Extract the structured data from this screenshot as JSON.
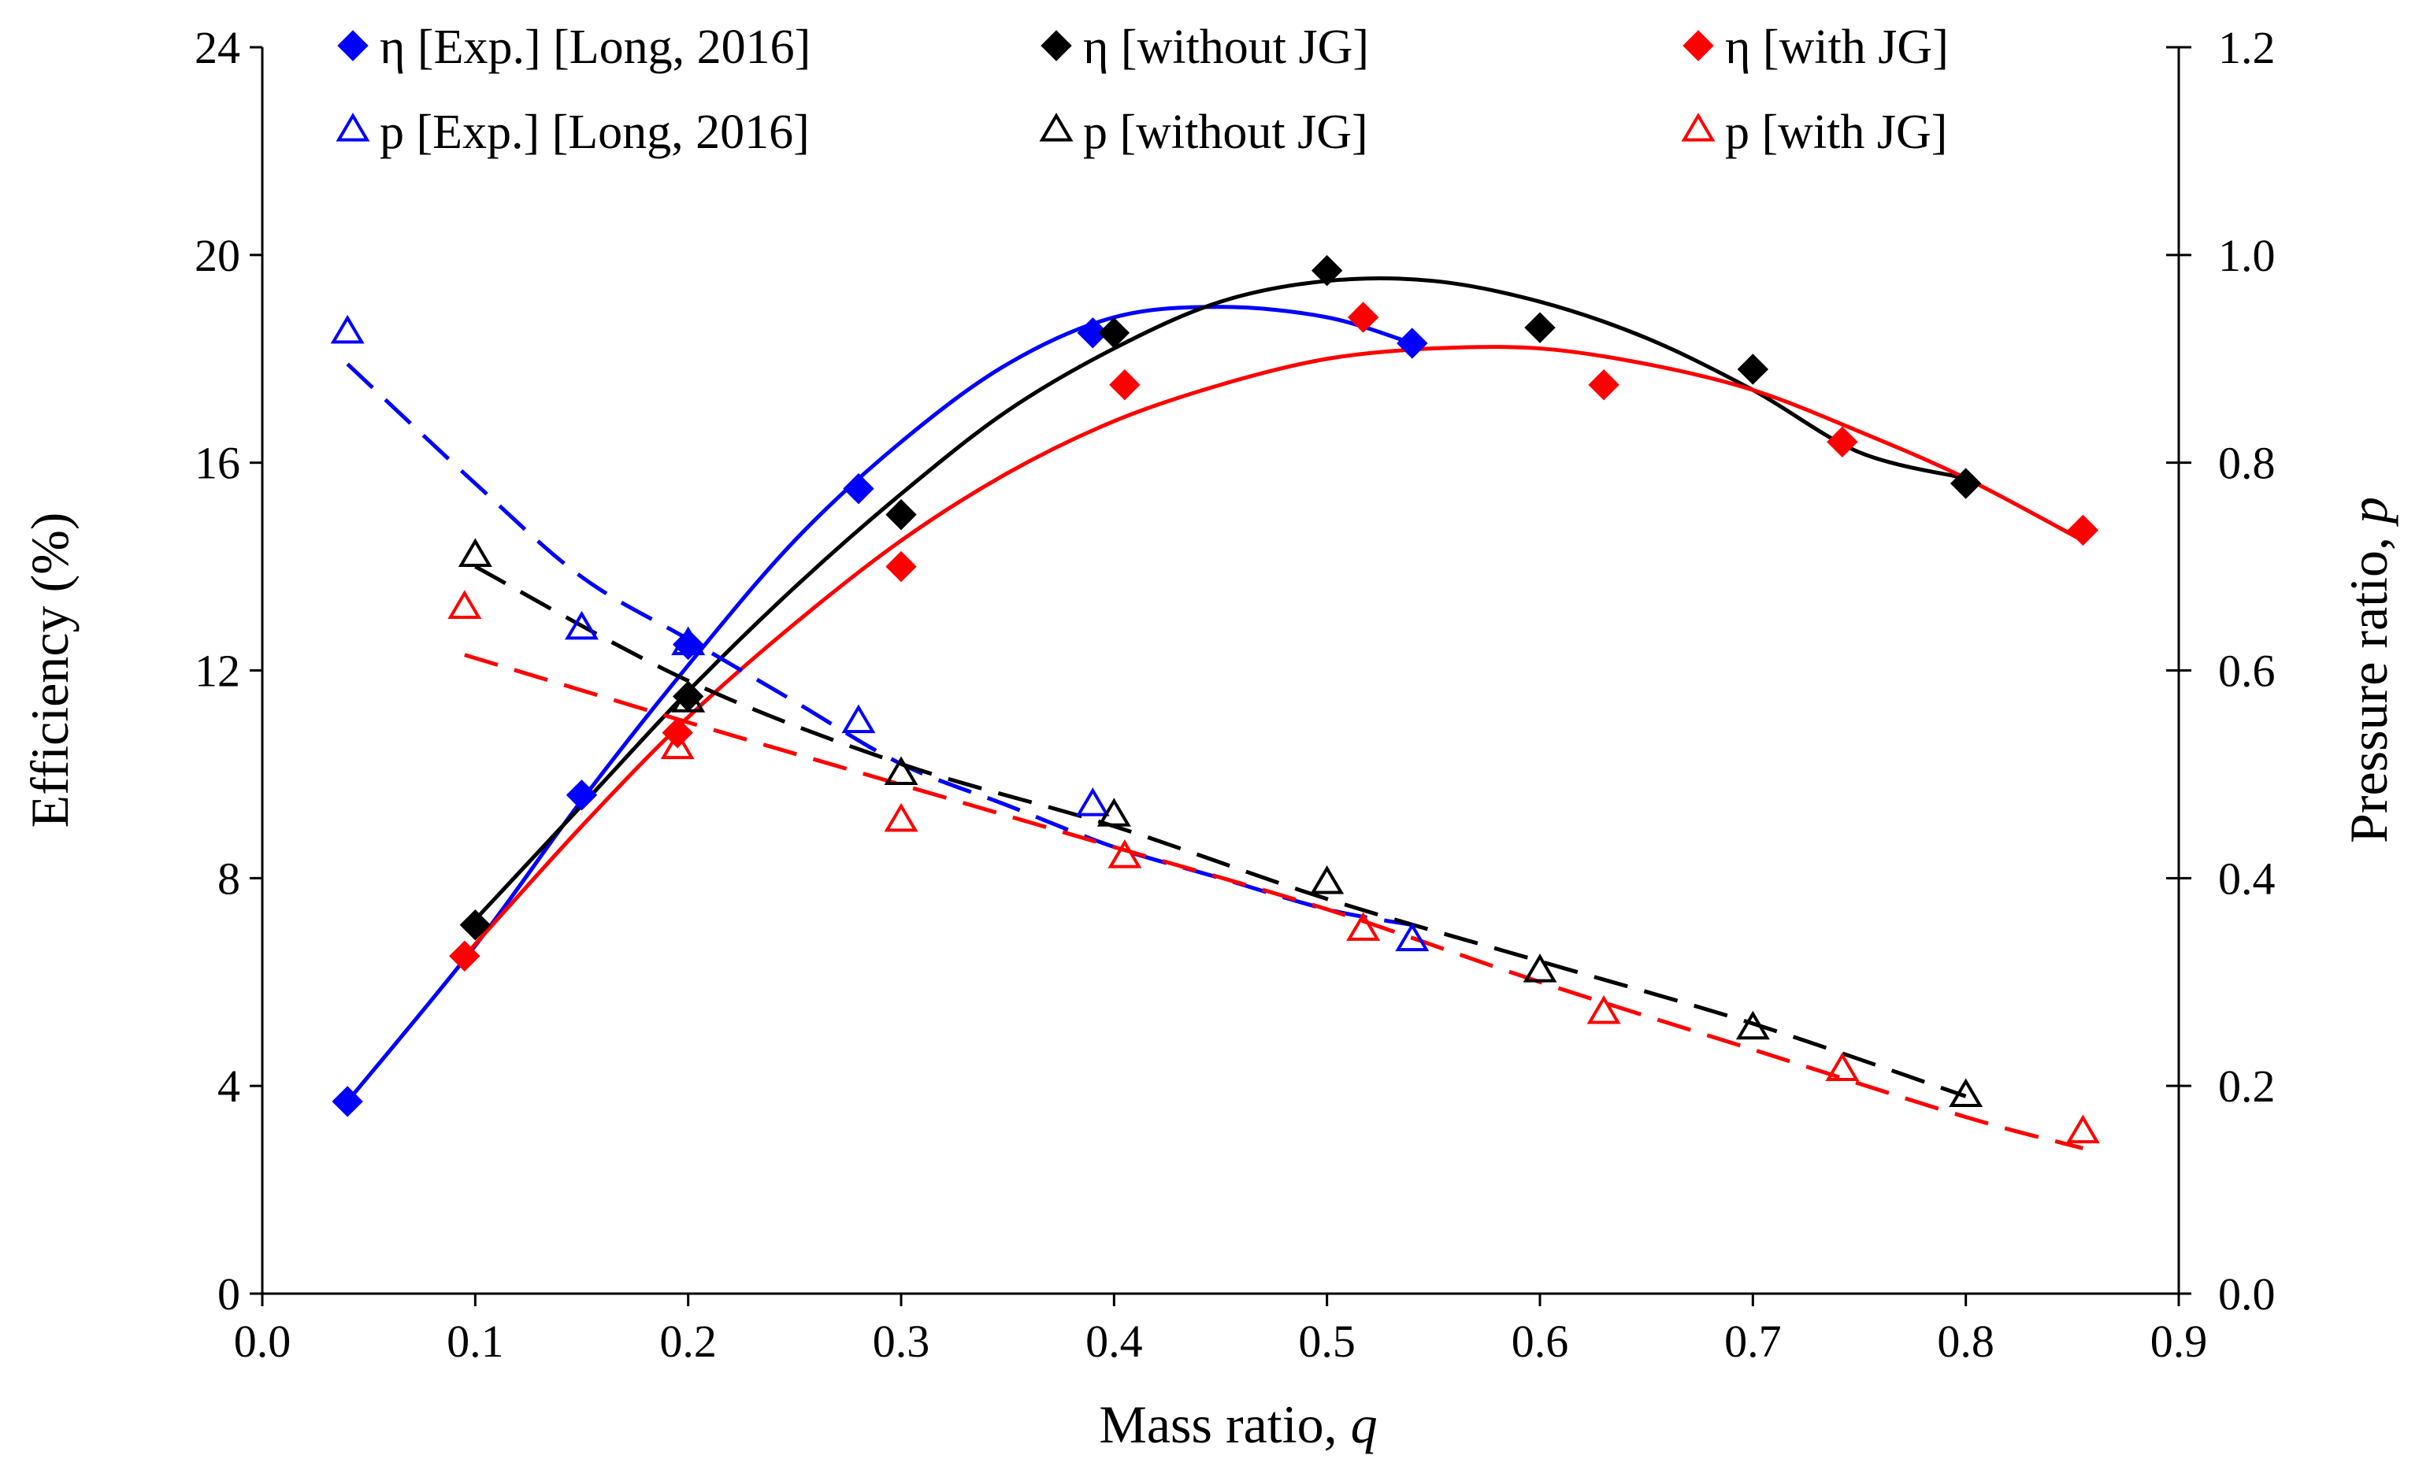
{
  "chart_data": {
    "type": "scatter",
    "title": "",
    "xlabel": "Mass ratio,",
    "xlabel_var": "q",
    "ylabel": "Efficiency (%)",
    "y2label": "Pressure ratio,",
    "y2label_var": "p",
    "xlim": [
      0.0,
      0.9
    ],
    "ylim": [
      0,
      24
    ],
    "y2lim": [
      0.0,
      1.2
    ],
    "x_ticks": [
      "0.0",
      "0.1",
      "0.2",
      "0.3",
      "0.4",
      "0.5",
      "0.6",
      "0.7",
      "0.8",
      "0.9"
    ],
    "y_ticks": [
      "0",
      "4",
      "8",
      "12",
      "16",
      "20",
      "24"
    ],
    "y2_ticks": [
      "0.0",
      "0.2",
      "0.4",
      "0.6",
      "0.8",
      "1.0",
      "1.2"
    ],
    "grid": false,
    "legend_position": "top",
    "series": [
      {
        "name": "η [Exp.] [Long, 2016]",
        "axis": "left",
        "marker": "diamond",
        "color": "#0000ff",
        "x": [
          0.04,
          0.15,
          0.2,
          0.28,
          0.39,
          0.54
        ],
        "y": [
          3.7,
          9.6,
          12.5,
          15.5,
          18.5,
          18.3
        ],
        "fit": {
          "style": "solid",
          "x": [
            0.04,
            0.1,
            0.15,
            0.2,
            0.25,
            0.3,
            0.35,
            0.4,
            0.45,
            0.5,
            0.54
          ],
          "y": [
            3.7,
            6.7,
            9.5,
            12.1,
            14.5,
            16.4,
            17.9,
            18.8,
            19.0,
            18.8,
            18.3
          ]
        }
      },
      {
        "name": "η [without JG]",
        "axis": "left",
        "marker": "diamond",
        "color": "#000000",
        "x": [
          0.1,
          0.2,
          0.3,
          0.4,
          0.5,
          0.6,
          0.7,
          0.8
        ],
        "y": [
          7.1,
          11.5,
          15.0,
          18.5,
          19.7,
          18.6,
          17.8,
          15.6
        ],
        "fit": {
          "style": "solid",
          "x": [
            0.1,
            0.15,
            0.2,
            0.25,
            0.3,
            0.35,
            0.4,
            0.45,
            0.5,
            0.55,
            0.6,
            0.65,
            0.7,
            0.75,
            0.8
          ],
          "y": [
            7.2,
            9.4,
            11.6,
            13.6,
            15.4,
            17.0,
            18.2,
            19.1,
            19.5,
            19.5,
            19.1,
            18.4,
            17.4,
            16.2,
            15.7
          ]
        }
      },
      {
        "name": "η [with JG]",
        "axis": "left",
        "marker": "diamond",
        "color": "#ff0000",
        "x": [
          0.095,
          0.195,
          0.3,
          0.405,
          0.517,
          0.63,
          0.742,
          0.855
        ],
        "y": [
          6.5,
          10.8,
          14.0,
          17.5,
          18.8,
          17.5,
          16.4,
          14.7
        ],
        "fit": {
          "style": "solid",
          "x": [
            0.095,
            0.15,
            0.2,
            0.25,
            0.3,
            0.35,
            0.4,
            0.45,
            0.5,
            0.55,
            0.6,
            0.65,
            0.7,
            0.75,
            0.8,
            0.855
          ],
          "y": [
            6.5,
            9.0,
            11.1,
            12.9,
            14.5,
            15.8,
            16.8,
            17.5,
            18.0,
            18.2,
            18.2,
            17.9,
            17.4,
            16.6,
            15.7,
            14.5
          ]
        }
      },
      {
        "name": "p [Exp.] [Long, 2016]",
        "axis": "right",
        "marker": "triangle-open",
        "color": "#0000ff",
        "x": [
          0.04,
          0.15,
          0.2,
          0.28,
          0.39,
          0.54
        ],
        "y": [
          0.925,
          0.64,
          0.625,
          0.55,
          0.47,
          0.34
        ],
        "fit": {
          "style": "dashed",
          "x": [
            0.04,
            0.1,
            0.15,
            0.2,
            0.25,
            0.3,
            0.35,
            0.4,
            0.45,
            0.5,
            0.54
          ],
          "y": [
            0.895,
            0.78,
            0.69,
            0.63,
            0.57,
            0.51,
            0.47,
            0.43,
            0.4,
            0.37,
            0.355
          ]
        }
      },
      {
        "name": "p [without JG]",
        "axis": "right",
        "marker": "triangle-open",
        "color": "#000000",
        "x": [
          0.1,
          0.2,
          0.3,
          0.4,
          0.5,
          0.6,
          0.7,
          0.8
        ],
        "y": [
          0.71,
          0.57,
          0.5,
          0.46,
          0.395,
          0.31,
          0.255,
          0.19
        ],
        "fit": {
          "style": "dashed",
          "x": [
            0.1,
            0.2,
            0.3,
            0.4,
            0.5,
            0.6,
            0.7,
            0.8
          ],
          "y": [
            0.7,
            0.59,
            0.51,
            0.45,
            0.38,
            0.32,
            0.26,
            0.19
          ]
        }
      },
      {
        "name": "p [with JG]",
        "axis": "right",
        "marker": "triangle-open",
        "color": "#ff0000",
        "x": [
          0.095,
          0.195,
          0.3,
          0.405,
          0.517,
          0.63,
          0.742,
          0.855
        ],
        "y": [
          0.66,
          0.525,
          0.455,
          0.42,
          0.35,
          0.27,
          0.215,
          0.155
        ],
        "fit": {
          "style": "dashed",
          "x": [
            0.095,
            0.2,
            0.3,
            0.4,
            0.5,
            0.6,
            0.7,
            0.8,
            0.855
          ],
          "y": [
            0.615,
            0.55,
            0.49,
            0.43,
            0.37,
            0.3,
            0.235,
            0.17,
            0.14
          ]
        }
      }
    ]
  }
}
